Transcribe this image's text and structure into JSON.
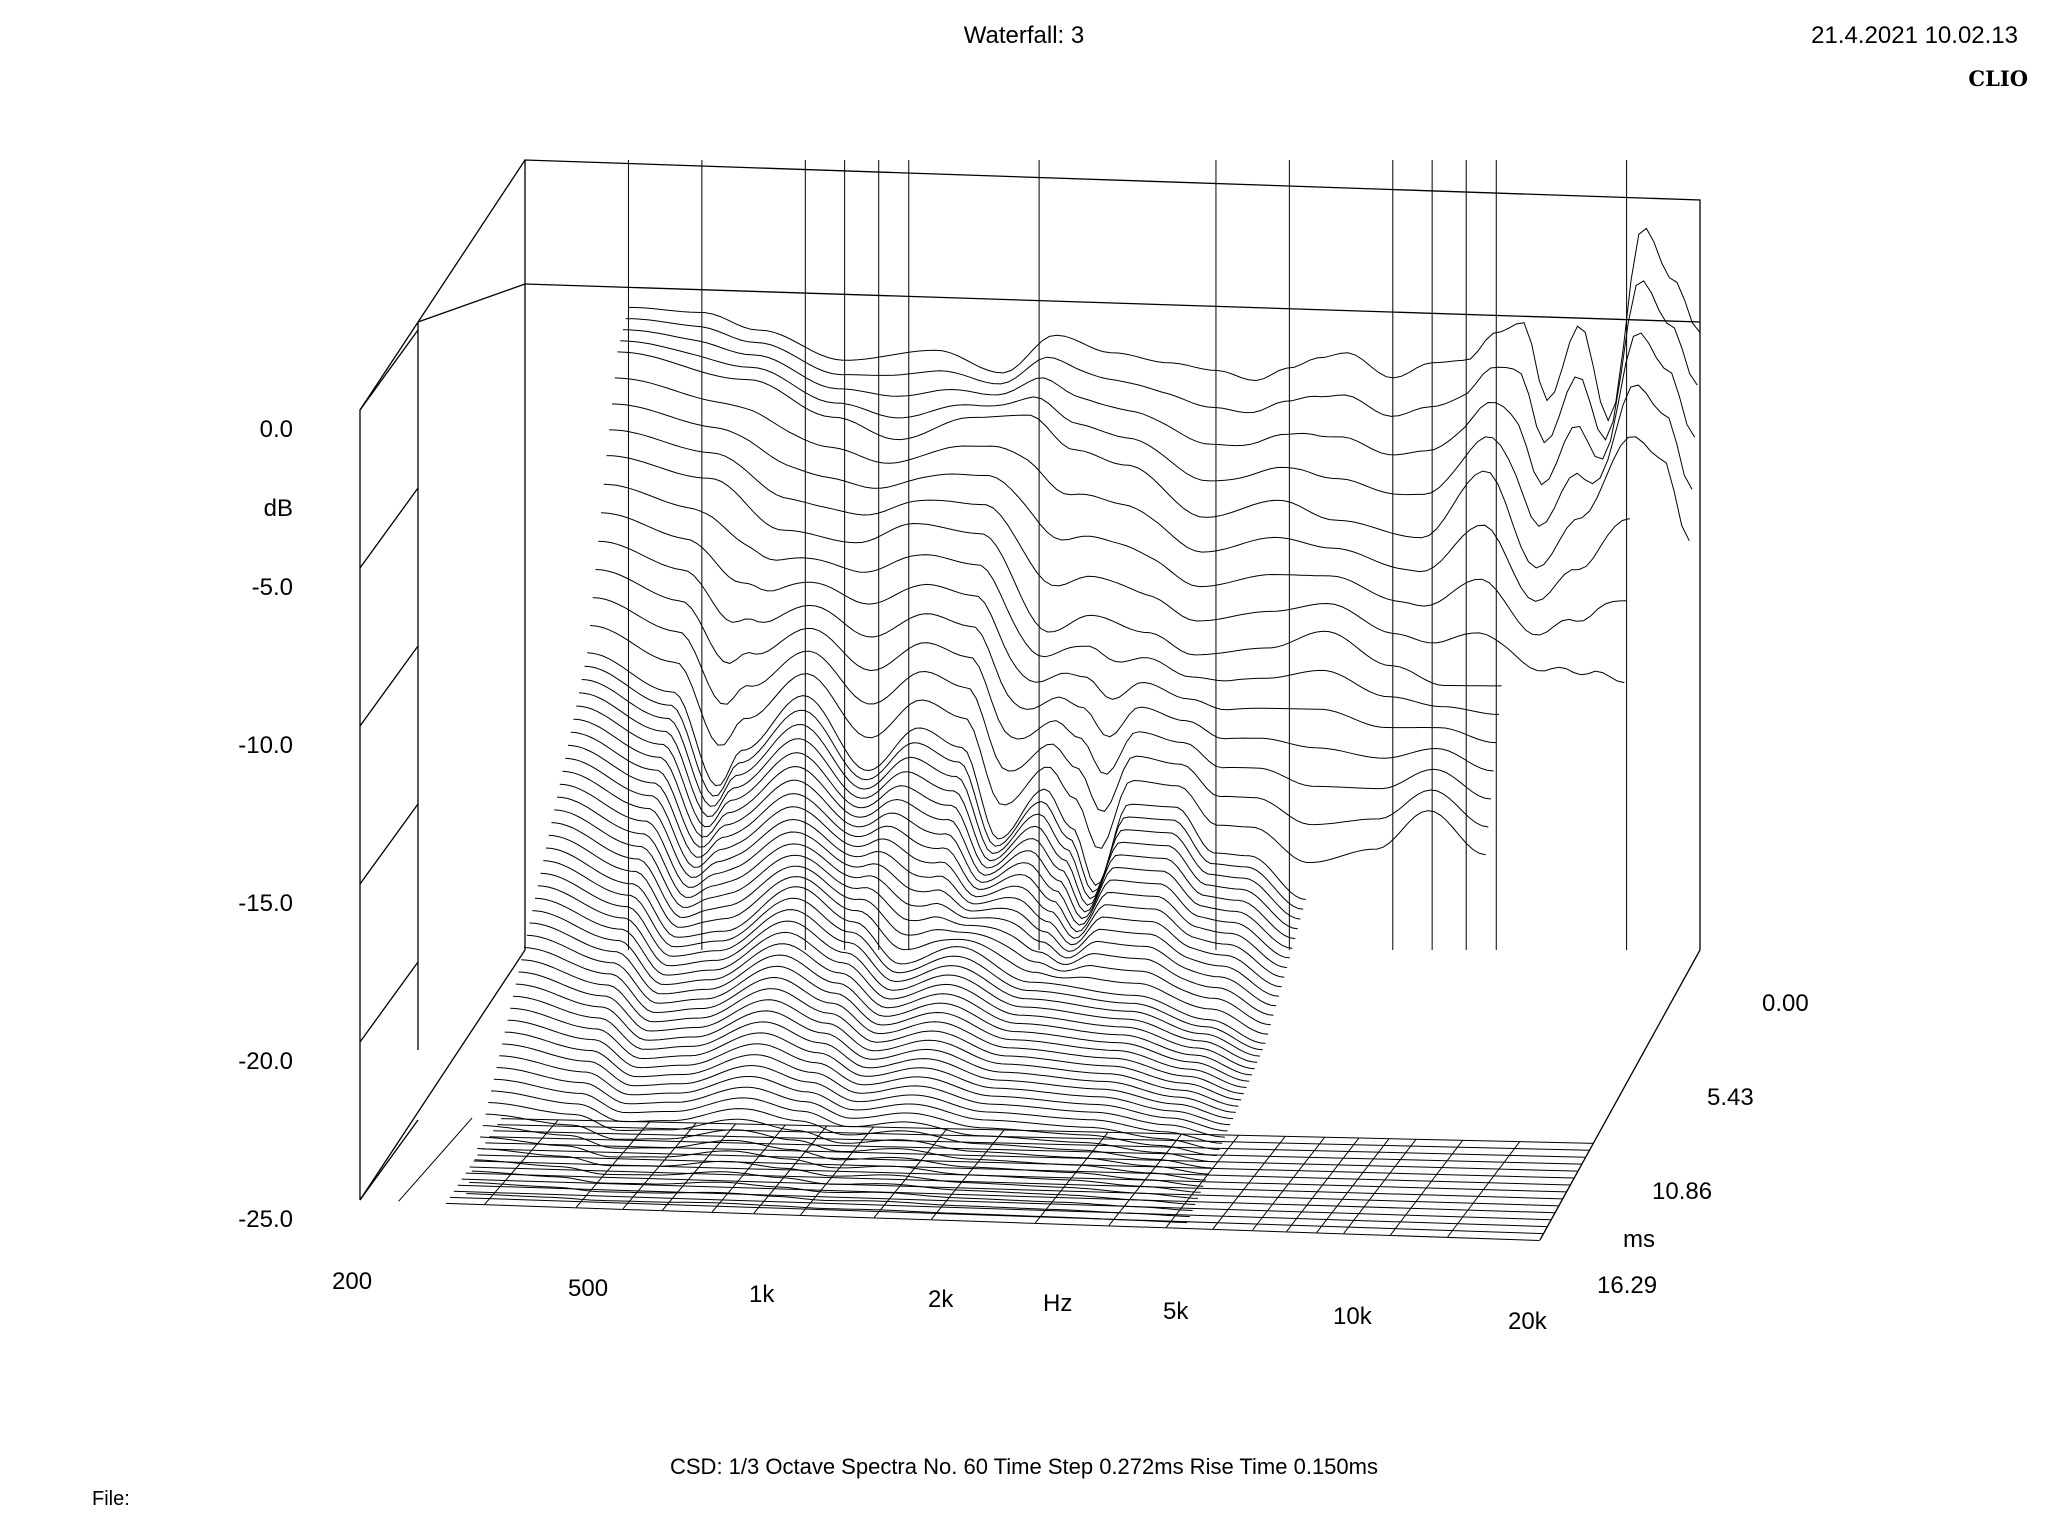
{
  "header": {
    "title": "Waterfall: 3",
    "timestamp": "21.4.2021 10.02.13",
    "brand": "CLIO"
  },
  "footer": {
    "settings": "CSD:   1/3 Octave   Spectra No. 60   Time Step 0.272ms   Rise Time 0.150ms",
    "file_label": "File:"
  },
  "chart_data": {
    "type": "waterfall",
    "title": "Waterfall: 3",
    "xlabel": "Hz",
    "ylabel": "dB",
    "zlabel": "ms",
    "x_scale": "log",
    "xlim": [
      200,
      20000
    ],
    "ylim": [
      -25.0,
      0.0
    ],
    "zlim": [
      0.0,
      16.29
    ],
    "x_tick_labels": [
      "200",
      "500",
      "1k",
      "2k",
      "5k",
      "10k",
      "20k"
    ],
    "x_ticks": [
      200,
      500,
      1000,
      2000,
      5000,
      10000,
      20000
    ],
    "y_tick_labels": [
      "0.0",
      "-5.0",
      "-10.0",
      "-15.0",
      "-20.0",
      "-25.0"
    ],
    "y_ticks": [
      0,
      -5,
      -10,
      -15,
      -20,
      -25
    ],
    "z_tick_labels": [
      "0.00",
      "5.43",
      "10.86",
      "16.29"
    ],
    "z_ticks": [
      0.0,
      5.43,
      10.86,
      16.29
    ],
    "spectra_count": 60,
    "time_step_ms": 0.272,
    "rise_time_ms": 0.15,
    "smoothing": "1/3 Octave",
    "series": [
      {
        "time_ms": 0.0,
        "freq": [
          300,
          400,
          500,
          700,
          1000,
          1300,
          1600,
          2000,
          2500,
          3000,
          3500,
          4000,
          4500,
          5000,
          6000,
          7000,
          8000,
          9000,
          10000,
          11000,
          12500,
          14000,
          16000,
          18000,
          20000
        ],
        "db": [
          0.5,
          0.3,
          -0.4,
          -1.6,
          -1.2,
          -2.1,
          -0.6,
          -1.3,
          -1.7,
          -2.0,
          -2.4,
          -1.9,
          -1.5,
          -1.3,
          -2.3,
          -1.7,
          -1.6,
          -0.5,
          -0.1,
          -3.2,
          -0.2,
          -4.0,
          3.7,
          1.6,
          -0.5
        ]
      },
      {
        "time_ms": 1.09,
        "freq": [
          300,
          500,
          700,
          900,
          1200,
          1500,
          1800,
          2200,
          3000,
          4000,
          5000,
          7000,
          9000,
          11000,
          13000,
          16000,
          18000,
          20000
        ],
        "db": [
          -0.3,
          -1.4,
          -2.9,
          -3.8,
          -2.9,
          -2.8,
          -4.2,
          -4.8,
          -6.9,
          -6.2,
          -7.0,
          -7.7,
          -5.0,
          -8.9,
          -6.9,
          -3.6,
          -4.5,
          -7.8
        ]
      },
      {
        "time_ms": 2.17,
        "freq": [
          300,
          450,
          600,
          800,
          1000,
          1300,
          1700,
          2000,
          2500,
          3000,
          4000,
          5000,
          6500,
          8000,
          10000,
          12000,
          14000,
          16000
        ],
        "db": [
          -3.5,
          -4.4,
          -6.5,
          -7.0,
          -6.2,
          -6.6,
          -10.6,
          -9.9,
          -10.6,
          -11.5,
          -11.2,
          -10.5,
          -11.9,
          -12.7,
          -12.7,
          -13.7,
          -14.5,
          -15.8
        ]
      },
      {
        "time_ms": 4.07,
        "freq": [
          300,
          420,
          500,
          550,
          700,
          900,
          1100,
          1300,
          1500,
          1800,
          2000,
          2200,
          2500,
          3000,
          3500,
          4000,
          5000,
          6500,
          8000,
          10000
        ],
        "db": [
          -10.0,
          -11.6,
          -15.5,
          -14.0,
          -11.7,
          -14.8,
          -13.0,
          -13.8,
          -17.6,
          -15.5,
          -17.1,
          -19.5,
          -16.1,
          -16.2,
          -18.1,
          -18.2,
          -20.0,
          -19.1,
          -17.1,
          -19.2
        ]
      },
      {
        "time_ms": 8.15,
        "freq": [
          300,
          420,
          500,
          600,
          800,
          1000,
          1200,
          1500,
          2000,
          3000,
          4000,
          5000
        ],
        "db": [
          -15.0,
          -16.5,
          -18.8,
          -18.5,
          -16.5,
          -18.0,
          -19.8,
          -19.0,
          -20.5,
          -21.0,
          -22.0,
          -23.0
        ]
      },
      {
        "time_ms": 16.29,
        "freq": [
          200,
          500,
          1000,
          2000,
          5000,
          10000,
          20000
        ],
        "db": [
          -25.0,
          -25.0,
          -25.0,
          -25.0,
          -25.0,
          -25.0,
          -25.0
        ]
      }
    ]
  }
}
